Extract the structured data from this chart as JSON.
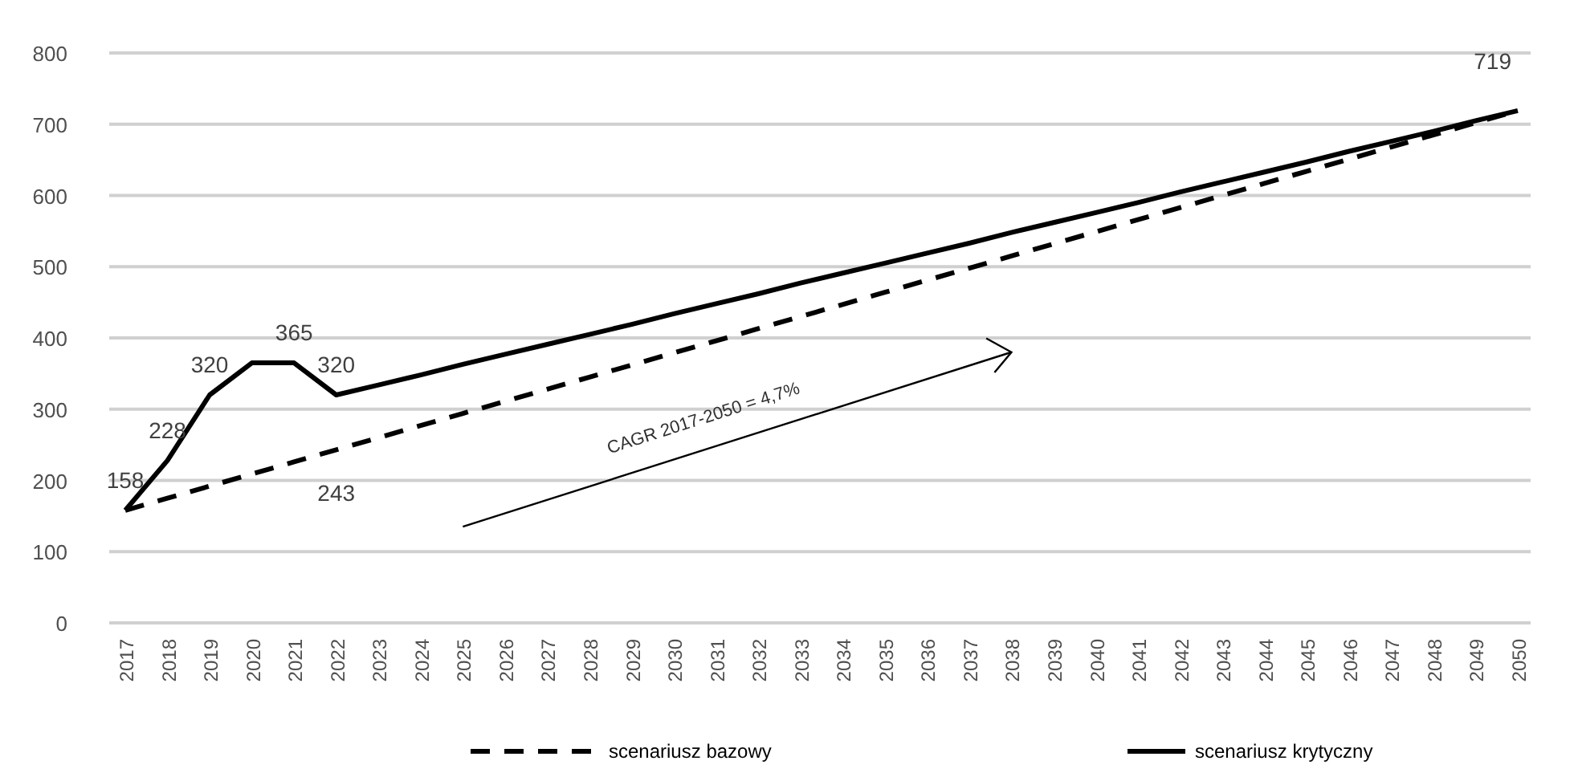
{
  "chart_data": {
    "type": "line",
    "categories": [
      "2017",
      "2018",
      "2019",
      "2020",
      "2021",
      "2022",
      "2023",
      "2024",
      "2025",
      "2026",
      "2027",
      "2028",
      "2029",
      "2030",
      "2031",
      "2032",
      "2033",
      "2034",
      "2035",
      "2036",
      "2037",
      "2038",
      "2039",
      "2040",
      "2041",
      "2042",
      "2043",
      "2044",
      "2045",
      "2046",
      "2047",
      "2048",
      "2049",
      "2050"
    ],
    "ylim": [
      0,
      800
    ],
    "yticks": [
      0,
      100,
      200,
      300,
      400,
      500,
      600,
      700,
      800
    ],
    "grid": "y",
    "legend": "bottom",
    "marker": "none",
    "series": [
      {
        "name": "scenariusz bazowy",
        "color": "#000000",
        "line_style": "dashed",
        "values": [
          158,
          175,
          192,
          209,
          226,
          243,
          260,
          277,
          294,
          311,
          328,
          345,
          362,
          379,
          396,
          413,
          430,
          447,
          464,
          481,
          498,
          515,
          532,
          549,
          566,
          583,
          600,
          617,
          634,
          651,
          668,
          685,
          702,
          719
        ],
        "value_labels": [
          null,
          null,
          null,
          null,
          null,
          "243",
          null,
          null,
          null,
          null,
          null,
          null,
          null,
          null,
          null,
          null,
          null,
          null,
          null,
          null,
          null,
          null,
          null,
          null,
          null,
          null,
          null,
          null,
          null,
          null,
          null,
          null,
          null,
          null
        ]
      },
      {
        "name": "scenariusz krytyczny",
        "color": "#000000",
        "line_style": "solid",
        "values": [
          158,
          228,
          320,
          365,
          365,
          320,
          334,
          348,
          363,
          377,
          391,
          405,
          419,
          434,
          448,
          462,
          477,
          491,
          505,
          519,
          533,
          548,
          562,
          576,
          590,
          605,
          619,
          633,
          647,
          662,
          676,
          690,
          705,
          719
        ],
        "value_labels": [
          "158",
          "228",
          "320",
          null,
          "365",
          "320",
          null,
          null,
          null,
          null,
          null,
          null,
          null,
          null,
          null,
          null,
          null,
          null,
          null,
          null,
          null,
          null,
          null,
          null,
          null,
          null,
          null,
          null,
          null,
          null,
          null,
          null,
          null,
          "719"
        ]
      }
    ],
    "annotations": [
      "CAGR 2017-2050 = 4,7%"
    ]
  }
}
